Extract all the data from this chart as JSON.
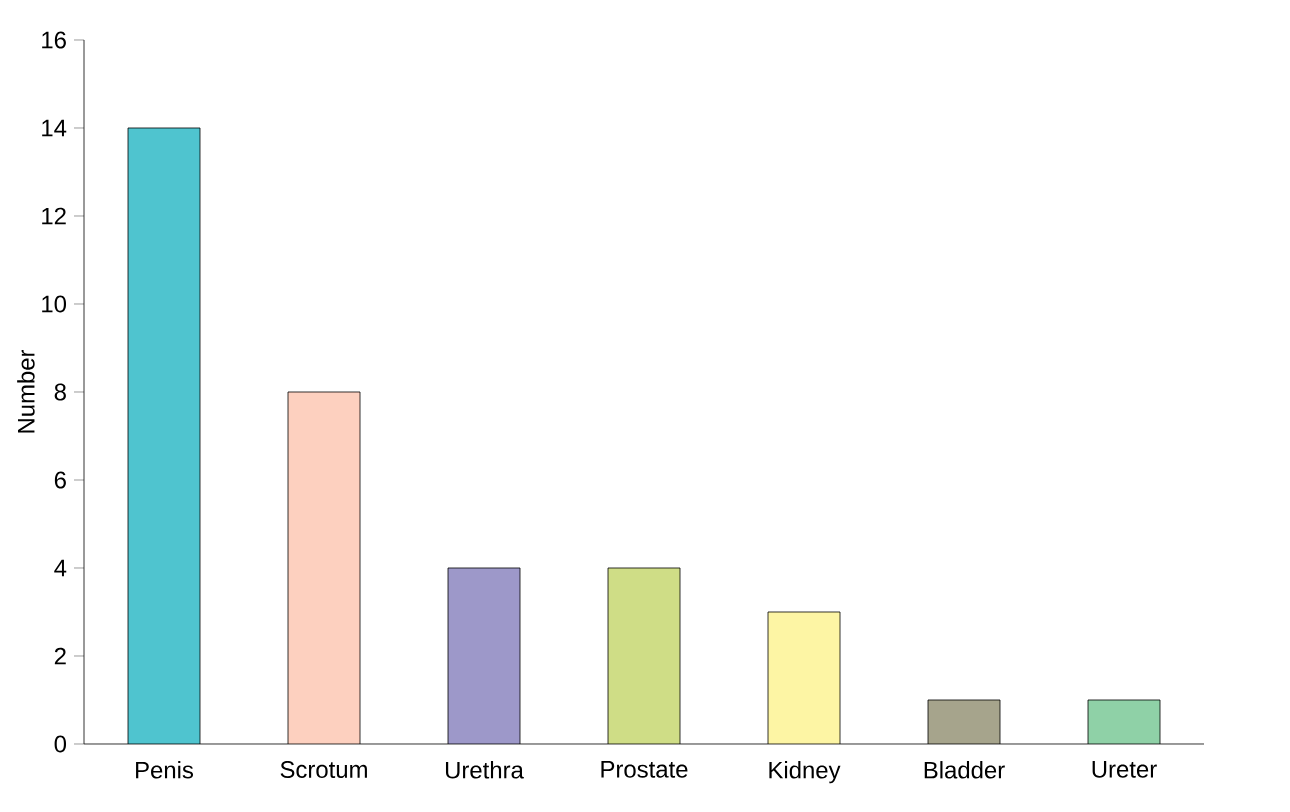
{
  "chart_data": {
    "type": "bar",
    "ylabel": "Number",
    "categories": [
      "Penis",
      "Scrotum",
      "Urethra",
      "Prostate",
      "Kidney",
      "Bladder",
      "Ureter"
    ],
    "values": [
      14,
      8,
      4,
      4,
      3,
      1,
      1
    ],
    "colors": [
      "#4fc4cf",
      "#fdd0bf",
      "#9d98c9",
      "#cfdd86",
      "#fdf5a4",
      "#a6a48c",
      "#8fd1a7"
    ],
    "ylim": [
      0,
      16
    ],
    "yticks": [
      0,
      2,
      4,
      6,
      8,
      10,
      12,
      14,
      16
    ]
  }
}
